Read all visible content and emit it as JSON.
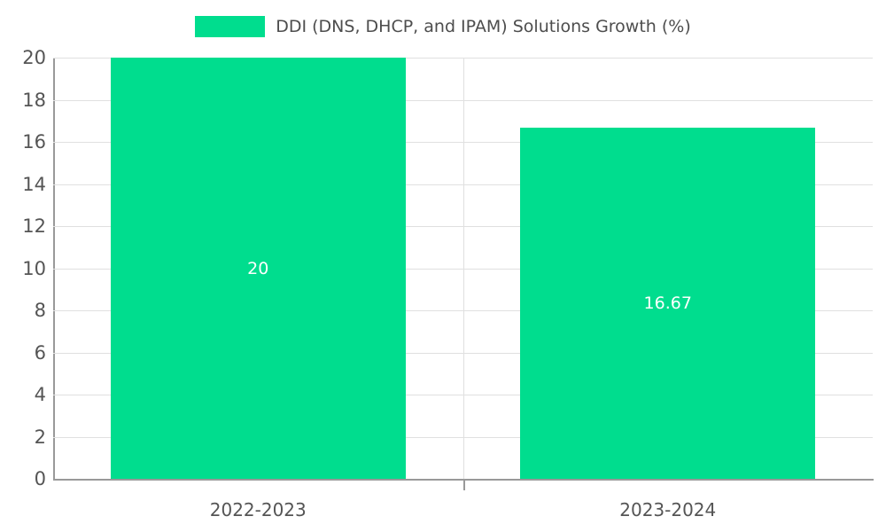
{
  "chart_data": {
    "type": "bar",
    "title": "DDI (DNS, DHCP, and IPAM) Solutions Growth (%)",
    "categories": [
      "2022-2023",
      "2023-2024"
    ],
    "values": [
      20,
      16.67
    ],
    "value_labels": [
      "20",
      "16.67"
    ],
    "xlabel": "",
    "ylabel": "",
    "ylim": [
      0,
      20
    ],
    "yticks": [
      0,
      2,
      4,
      6,
      8,
      10,
      12,
      14,
      16,
      18,
      20
    ],
    "grid": true,
    "legend_position": "top-center",
    "colors": {
      "bar": "#00DD8E",
      "value_label": "#ffffff",
      "grid": "#e0e0e0",
      "spine": "#999999",
      "tick_text": "#555555",
      "legend_text": "#4d4d4d",
      "background": "#ffffff"
    }
  }
}
